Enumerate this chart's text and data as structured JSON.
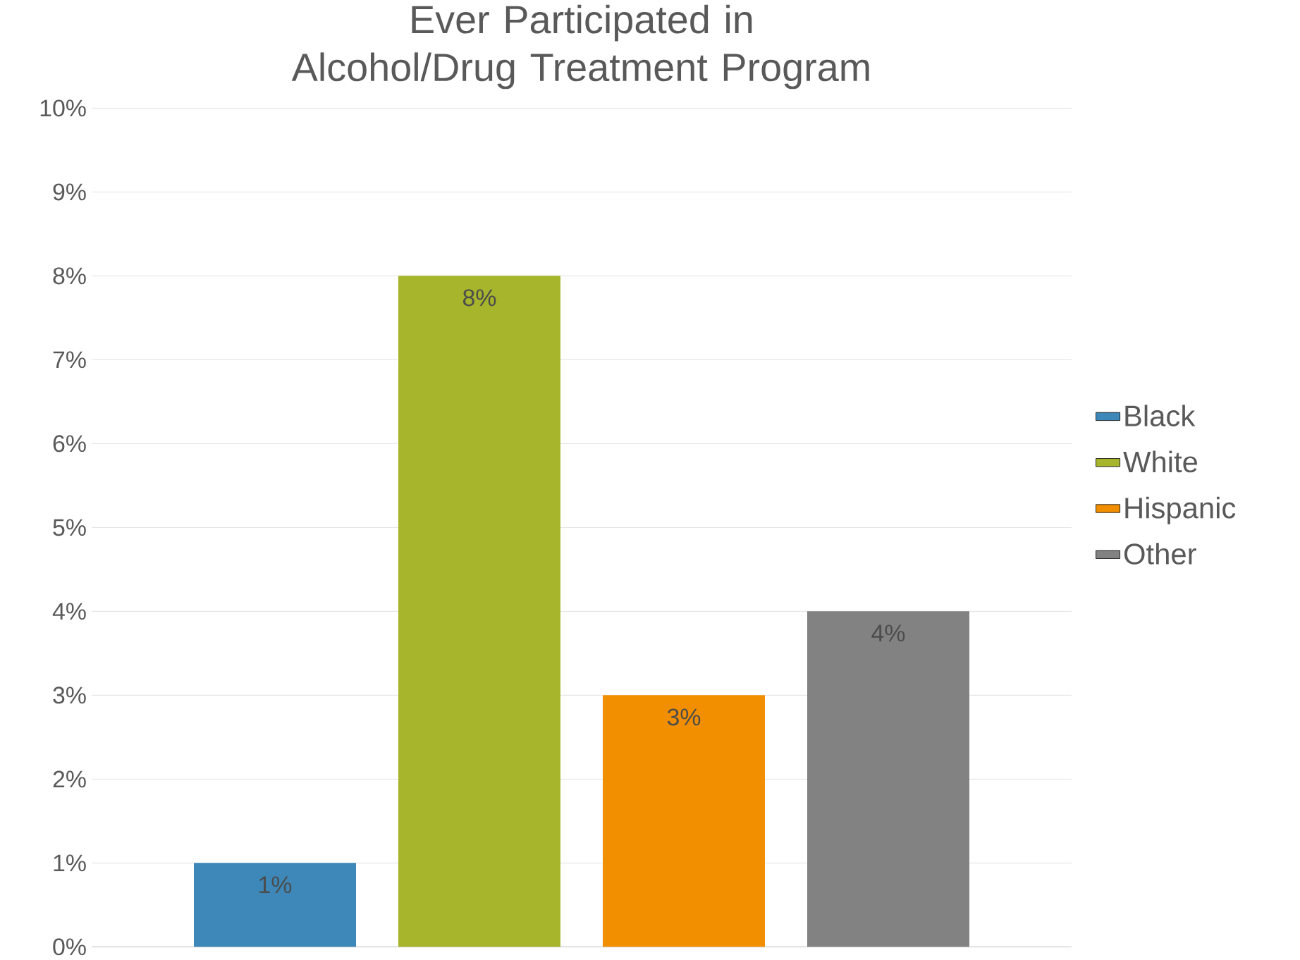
{
  "chart_data": {
    "type": "bar",
    "title": "Ever Participated in Alcohol/Drug Treatment Program",
    "categories": [
      null
    ],
    "series": [
      {
        "name": "Black",
        "color": "#3d88b8",
        "values": [
          1
        ],
        "value_labels": [
          "1%"
        ]
      },
      {
        "name": "White",
        "color": "#a6b52b",
        "values": [
          8
        ],
        "value_labels": [
          "8%"
        ]
      },
      {
        "name": "Hispanic",
        "color": "#f28f00",
        "values": [
          3
        ],
        "value_labels": [
          "3%"
        ]
      },
      {
        "name": "Other",
        "color": "#828282",
        "values": [
          4
        ],
        "value_labels": [
          "4%"
        ]
      }
    ],
    "ylim": [
      0,
      10
    ],
    "yticks": [
      {
        "value": 0,
        "label": "0%"
      },
      {
        "value": 1,
        "label": "1%"
      },
      {
        "value": 2,
        "label": "2%"
      },
      {
        "value": 3,
        "label": "3%"
      },
      {
        "value": 4,
        "label": "4%"
      },
      {
        "value": 5,
        "label": "5%"
      },
      {
        "value": 6,
        "label": "6%"
      },
      {
        "value": 7,
        "label": "7%"
      },
      {
        "value": 8,
        "label": "8%"
      },
      {
        "value": 9,
        "label": "9%"
      },
      {
        "value": 10,
        "label": "10%"
      }
    ],
    "grid": "y",
    "legend": "right"
  }
}
